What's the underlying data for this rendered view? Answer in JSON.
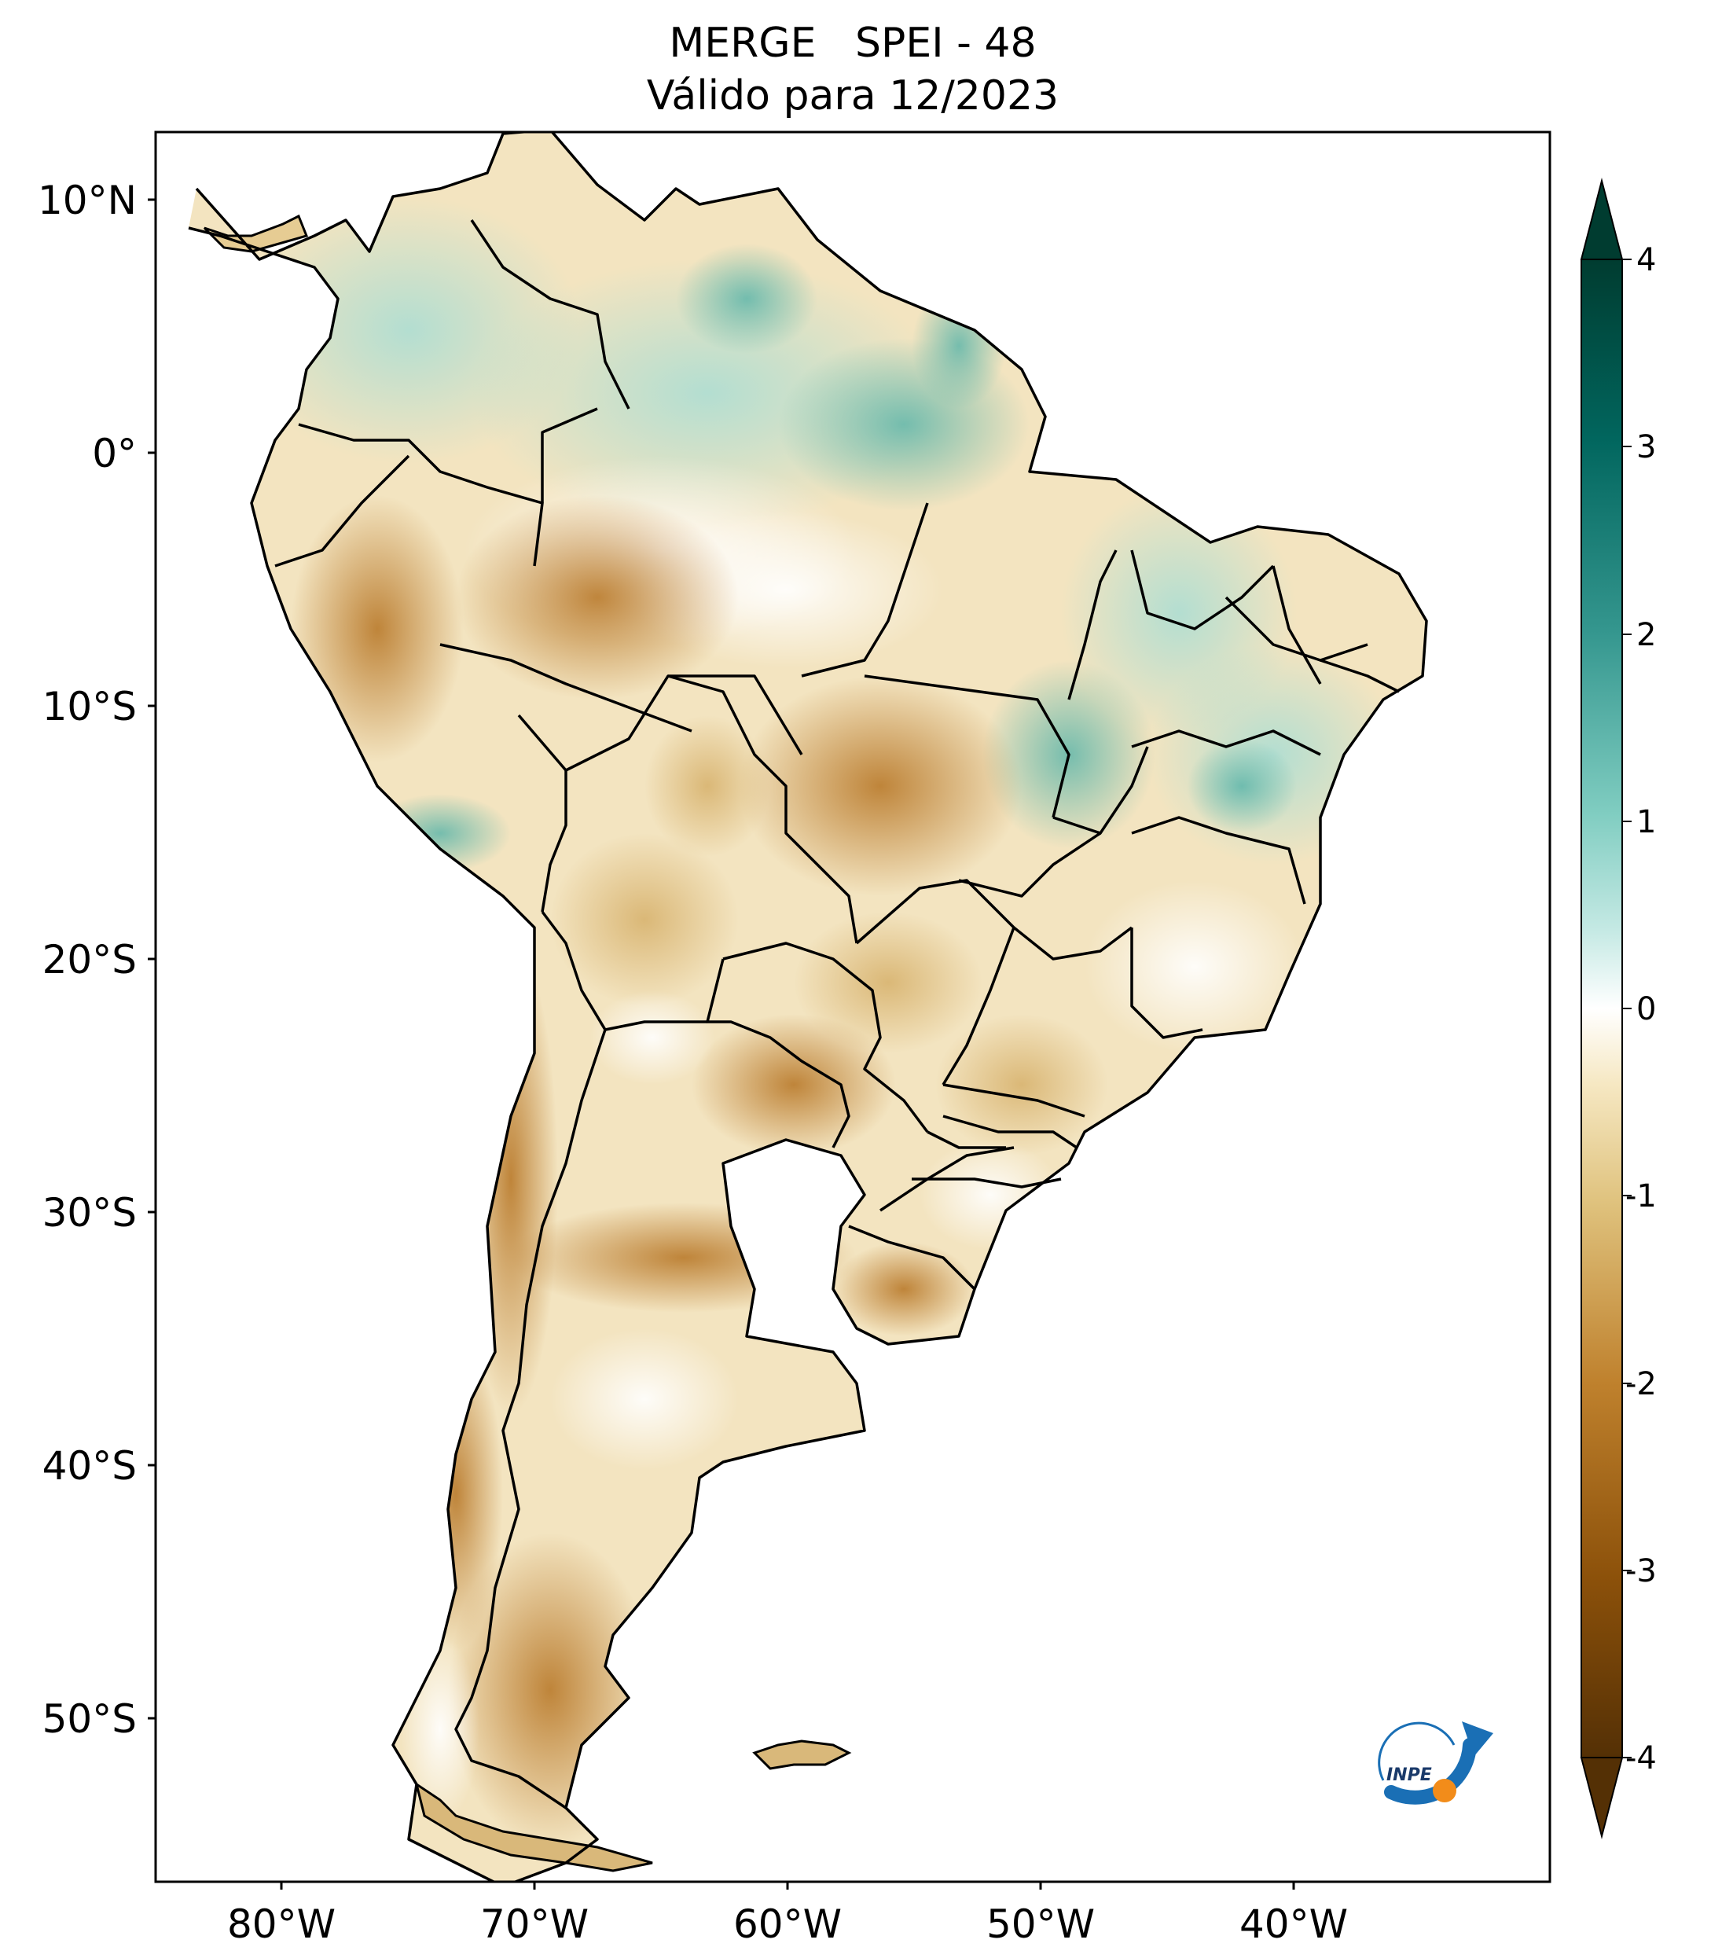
{
  "title": {
    "line1": "MERGE   SPEI - 48",
    "line2": "Válido para 12/2023"
  },
  "map": {
    "lat_labels": [
      "10°N",
      "0°",
      "10°S",
      "20°S",
      "30°S",
      "40°S",
      "50°S"
    ],
    "lon_labels": [
      "80°W",
      "70°W",
      "60°W",
      "50°W",
      "40°W"
    ],
    "extent": {
      "lon": [
        -85,
        -30
      ],
      "lat": [
        -56,
        13
      ]
    }
  },
  "colorbar": {
    "ticks": [
      "4",
      "3",
      "2",
      "1",
      "0",
      "-1",
      "-2",
      "-3",
      "-4"
    ],
    "range": [
      -4,
      4
    ],
    "extend": "both",
    "colormap": "BrBG",
    "colors": {
      "negative_extreme": "#543005",
      "neutral": "#ffffff",
      "positive_extreme": "#003c30"
    }
  },
  "logo": {
    "text": "INPE",
    "colors": {
      "arrow": "#1a6fb5",
      "dot": "#f28c1a"
    }
  }
}
